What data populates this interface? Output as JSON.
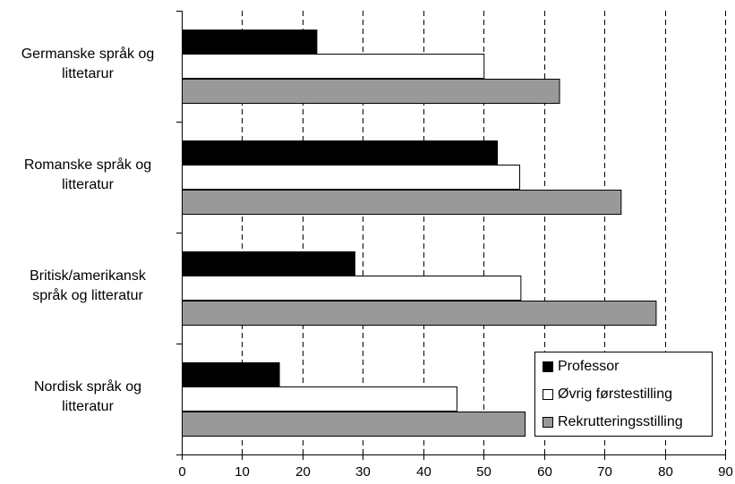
{
  "chart_data": {
    "type": "bar",
    "orientation": "horizontal",
    "categories": [
      "Germanske språk og littetarur",
      "Romanske språk og litteratur",
      "Britisk/amerikansk språk og litteratur",
      "Nordisk språk og litteratur"
    ],
    "category_lines": [
      [
        "Germanske språk og",
        "littetarur"
      ],
      [
        "Romanske språk og",
        "litteratur"
      ],
      [
        "Britisk/amerikansk",
        "språk og litteratur"
      ],
      [
        "Nordisk språk og",
        "litteratur"
      ]
    ],
    "series": [
      {
        "name": "Professor",
        "color": "#000000",
        "values": [
          22.3,
          52.2,
          28.6,
          16.1
        ]
      },
      {
        "name": "Øvrig førstestilling",
        "color": "#ffffff",
        "values": [
          50.0,
          55.9,
          56.1,
          45.5
        ]
      },
      {
        "name": "Rekrutteringsstilling",
        "color": "#999999",
        "values": [
          62.5,
          72.7,
          78.5,
          56.8
        ]
      }
    ],
    "xlim": [
      0,
      90
    ],
    "xticks": [
      0,
      10,
      20,
      30,
      40,
      50,
      60,
      70,
      80,
      90
    ],
    "grid": "vertical dashed",
    "legend_position": "bottom-right"
  }
}
